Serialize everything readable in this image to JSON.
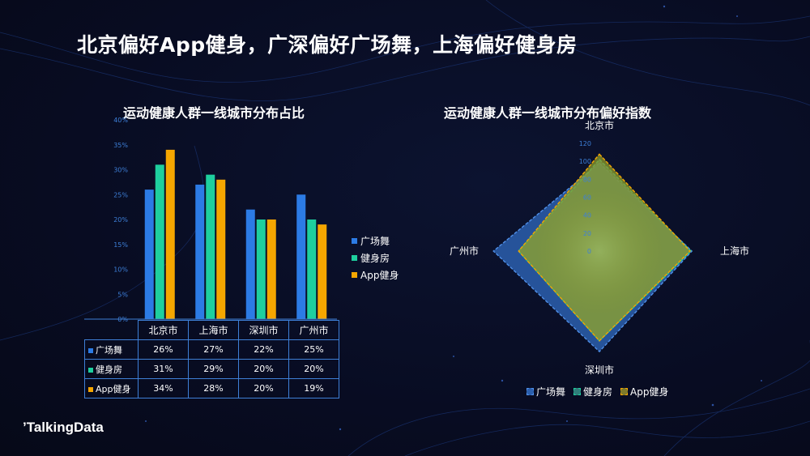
{
  "page": {
    "title": "北京偏好App健身，广深偏好广场舞，上海偏好健身房"
  },
  "brand": {
    "logo_text": "TalkingData"
  },
  "colors": {
    "series": [
      "#2c7be5",
      "#1ecf9e",
      "#f5a600"
    ],
    "radar_fill": [
      "#2b5fae",
      "#3a8f93",
      "#8f9a2a"
    ],
    "axis": "#2f5fa6",
    "tick": "#3d7fd8"
  },
  "chart_data": [
    {
      "type": "bar",
      "title": "运动健康人群一线城市分布占比",
      "categories": [
        "北京市",
        "上海市",
        "深圳市",
        "广州市"
      ],
      "series": [
        {
          "name": "广场舞",
          "values": [
            26,
            27,
            22,
            25
          ]
        },
        {
          "name": "健身房",
          "values": [
            31,
            29,
            20,
            20
          ]
        },
        {
          "name": "App健身",
          "values": [
            34,
            28,
            20,
            19
          ]
        }
      ],
      "ylim": [
        0,
        40
      ],
      "yticks": [
        "0%",
        "5%",
        "10%",
        "15%",
        "20%",
        "25%",
        "30%",
        "35%",
        "40%"
      ],
      "legend_position": "right",
      "table": {
        "rows": [
          {
            "name": "广场舞",
            "cells": [
              "26%",
              "27%",
              "22%",
              "25%"
            ]
          },
          {
            "name": "健身房",
            "cells": [
              "31%",
              "29%",
              "20%",
              "20%"
            ]
          },
          {
            "name": "App健身",
            "cells": [
              "34%",
              "28%",
              "20%",
              "19%"
            ]
          }
        ]
      }
    },
    {
      "type": "radar",
      "title": "运动健康人群一线城市分布偏好指数",
      "axes": [
        "北京市",
        "上海市",
        "深圳市",
        "广州市"
      ],
      "rlim": [
        0,
        120
      ],
      "rticks": [
        "0",
        "20",
        "40",
        "60",
        "80",
        "100",
        "120"
      ],
      "series": [
        {
          "name": "广场舞",
          "values": [
            98,
            103,
            112,
            118
          ]
        },
        {
          "name": "健身房",
          "values": [
            102,
            102,
            100,
            90
          ]
        },
        {
          "name": "App健身",
          "values": [
            108,
            101,
            100,
            90
          ]
        }
      ],
      "legend_position": "bottom"
    }
  ]
}
